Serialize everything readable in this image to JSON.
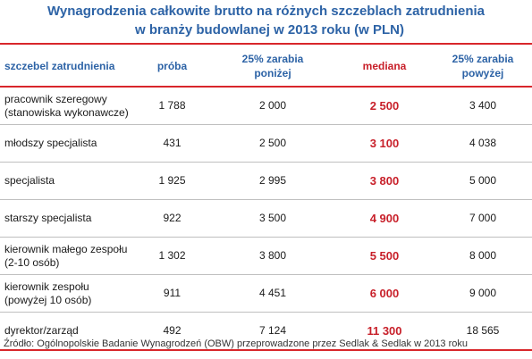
{
  "title": {
    "line1": "Wynagrodzenia całkowite brutto na różnych szczeblach zatrudnienia",
    "line2": "w branży budowlanej w 2013 roku (w PLN)"
  },
  "table": {
    "headers": {
      "level": "szczebel zatrudnienia",
      "sample": "próba",
      "p25_line1": "25% zarabia",
      "p25_line2": "poniżej",
      "median": "mediana",
      "p75_line1": "25% zarabia",
      "p75_line2": "powyżej"
    },
    "rows": [
      {
        "level_line1": "pracownik szeregowy",
        "level_line2": "(stanowiska wykonawcze)",
        "sample": "1 788",
        "p25": "2 000",
        "median": "2 500",
        "p75": "3 400"
      },
      {
        "level_line1": "młodszy specjalista",
        "level_line2": "",
        "sample": "431",
        "p25": "2 500",
        "median": "3 100",
        "p75": "4 038"
      },
      {
        "level_line1": "specjalista",
        "level_line2": "",
        "sample": "1 925",
        "p25": "2 995",
        "median": "3 800",
        "p75": "5 000"
      },
      {
        "level_line1": "starszy specjalista",
        "level_line2": "",
        "sample": "922",
        "p25": "3 500",
        "median": "4 900",
        "p75": "7 000"
      },
      {
        "level_line1": "kierownik małego zespołu",
        "level_line2": "(2-10 osób)",
        "sample": "1 302",
        "p25": "3 800",
        "median": "5 500",
        "p75": "8 000"
      },
      {
        "level_line1": "kierownik zespołu",
        "level_line2": "(powyżej 10 osób)",
        "sample": "911",
        "p25": "4 451",
        "median": "6 000",
        "p75": "9 000"
      },
      {
        "level_line1": "dyrektor/zarząd",
        "level_line2": "",
        "sample": "492",
        "p25": "7 124",
        "median": "11 300",
        "p75": "18 565"
      }
    ]
  },
  "colors": {
    "title_blue": "#2d63a6",
    "accent_red": "#d8262b",
    "median_red": "#c8202a"
  },
  "source": "Źródło: Ogólnopolskie Badanie Wynagrodzeń (OBW) przeprowadzone przez Sedlak & Sedlak w 2013 roku"
}
